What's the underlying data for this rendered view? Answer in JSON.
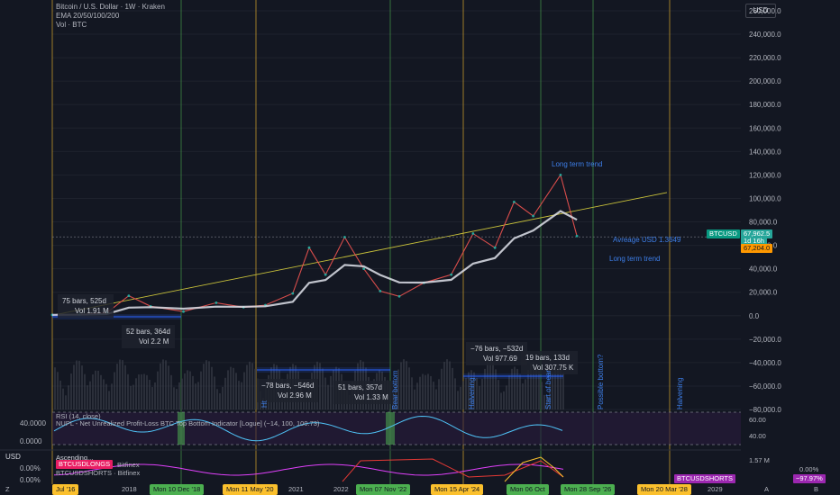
{
  "legend": {
    "title": "Bitcoin / U.S. Dollar · 1W · Kraken",
    "ema": "EMA 20/50/100/200",
    "vol": "Vol · BTC"
  },
  "currency_top": "USD",
  "currency_left": "USD",
  "price_axis": [
    "260,000.0",
    "240,000.0",
    "220,000.0",
    "200,000.0",
    "180,000.0",
    "160,000.0",
    "140,000.0",
    "120,000.0",
    "100,000.0",
    "80,000.0",
    "60,000.0",
    "40,000.0",
    "20,000.0",
    "0.0",
    "−20,000.0",
    "−40,000.0",
    "−60,000.0",
    "−80,000.0"
  ],
  "price_tags": {
    "symbol": "BTCUSD",
    "last": "67,962.5",
    "countdown": "1d 16h",
    "ema": "67,204.0"
  },
  "notes": {
    "long_term_trend_1": "Long term trend",
    "long_term_trend_2": "Long term trend",
    "average": "Avreage USD 1.3649"
  },
  "annotations": [
    {
      "l1": "75 bars, 525d",
      "l2": "Vol 1.91 M"
    },
    {
      "l1": "52 bars, 364d",
      "l2": "Vol 2.2 M"
    },
    {
      "l1": "−78 bars, −546d",
      "l2": "Vol 2.96 M"
    },
    {
      "l1": "51 bars, 357d",
      "l2": "Vol 1.33 M"
    },
    {
      "l1": "−76 bars, −532d",
      "l2": "Vol 977.69"
    },
    {
      "l1": "19 bars, 133d",
      "l2": "Vol 307.75 K"
    }
  ],
  "vertical_labels": {
    "bear_bottom": "Bear bottom",
    "halving_1": "Halvening",
    "start_of": "Start of bear",
    "possible_bottom": "Possible bottom?",
    "halving_2": "Halvening",
    "ht": "Ht"
  },
  "rsi": {
    "label1": "RSI (14, close)",
    "label2": "NUPL - Net Unrealized Profit-Loss BTC Top Bottom Indicator [Logue] (−14, 100, 100.73)",
    "axis": [
      "40.0000",
      "0.0000"
    ],
    "right_axis": [
      "60.00",
      "40.00"
    ]
  },
  "shorts": {
    "label1": "Ascending...",
    "label2": "BTCUSDLONGS",
    "label2b": "Bitfinex",
    "label3": "BTCUSDSHORTS · Bitfinex",
    "left_pct": [
      "0.00%",
      "0.00%"
    ],
    "right_vals": [
      "1.57 M",
      "0.00%",
      "−97.97%"
    ],
    "tag": "BTCUSDSHORTS"
  },
  "time_axis": {
    "plain": [
      "Jul '16",
      "2018",
      "2021",
      "2022",
      "2029"
    ],
    "boxes": [
      {
        "text": "Mon 10 Dec '18",
        "color": "#4caf50"
      },
      {
        "text": "Mon 11 May '20",
        "color": "#fbc02d"
      },
      {
        "text": "Mon 07 Nov '22",
        "color": "#4caf50"
      },
      {
        "text": "Mon 15 Apr '24",
        "color": "#fbc02d"
      },
      {
        "text": "Mon 06 Oct",
        "color": "#4caf50"
      },
      {
        "text": "Mon 28 Sep '26",
        "color": "#4caf50"
      },
      {
        "text": "Mon 20 Mar '28",
        "color": "#fbc02d"
      }
    ],
    "corner_left": "Z",
    "corner_a": "A",
    "corner_b": "B"
  },
  "chart_data": {
    "type": "line",
    "title": "Bitcoin / U.S. Dollar · 1W · Kraken",
    "xlabel": "",
    "ylabel": "USD",
    "ylim": [
      -80000,
      260000
    ],
    "x": [
      2016.5,
      2017.0,
      2017.5,
      2017.9,
      2018.3,
      2018.9,
      2019.5,
      2020.0,
      2020.4,
      2020.9,
      2021.2,
      2021.5,
      2021.85,
      2022.2,
      2022.5,
      2022.85,
      2023.3,
      2023.8,
      2024.2,
      2024.6,
      2024.95,
      2025.3,
      2025.8,
      2026.1
    ],
    "series": [
      {
        "name": "BTCUSD",
        "values": [
          700,
          1000,
          2500,
          17000,
          8000,
          3500,
          11000,
          7200,
          9000,
          19000,
          58000,
          35000,
          67000,
          40000,
          21000,
          16500,
          28000,
          35000,
          70000,
          58000,
          97000,
          85000,
          120000,
          67962
        ]
      }
    ]
  }
}
